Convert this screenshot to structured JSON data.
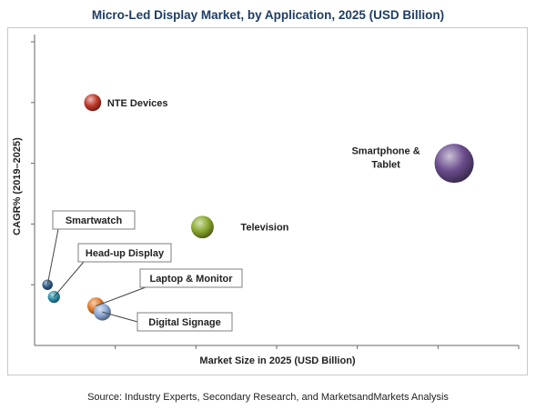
{
  "chart_data": {
    "type": "scatter",
    "title": "Micro-Led Display Market, by Application, 2025 (USD Billion)",
    "xlabel": "Market Size in 2025 (USD Billion)",
    "ylabel": "CAGR% (2019–2025)",
    "grid": false,
    "points": [
      {
        "label": "NTE Devices",
        "x": 1.8,
        "y": 4.0,
        "size": 0.8,
        "color": "#c0392b",
        "label_style": "plain"
      },
      {
        "label": "Smartphone & Tablet",
        "x": 13.0,
        "y": 3.0,
        "size": 4.2,
        "color": "#6a4c8c",
        "label_style": "plain"
      },
      {
        "label": "Television",
        "x": 5.2,
        "y": 1.95,
        "size": 1.4,
        "color": "#8aa82e",
        "label_style": "plain"
      },
      {
        "label": "Smartwatch",
        "x": 0.4,
        "y": 1.0,
        "size": 0.3,
        "color": "#2e5c8a",
        "label_style": "callout"
      },
      {
        "label": "Head-up Display",
        "x": 0.6,
        "y": 0.8,
        "size": 0.4,
        "color": "#2a8fa8",
        "label_style": "callout"
      },
      {
        "label": "Laptop & Monitor",
        "x": 1.9,
        "y": 0.65,
        "size": 0.8,
        "color": "#e07b2a",
        "label_style": "callout"
      },
      {
        "label": "Digital Signage",
        "x": 2.1,
        "y": 0.55,
        "size": 0.8,
        "color": "#8da8d6",
        "label_style": "callout"
      }
    ]
  },
  "source": "Source: Industry Experts, Secondary Research, and MarketsandMarkets Analysis"
}
